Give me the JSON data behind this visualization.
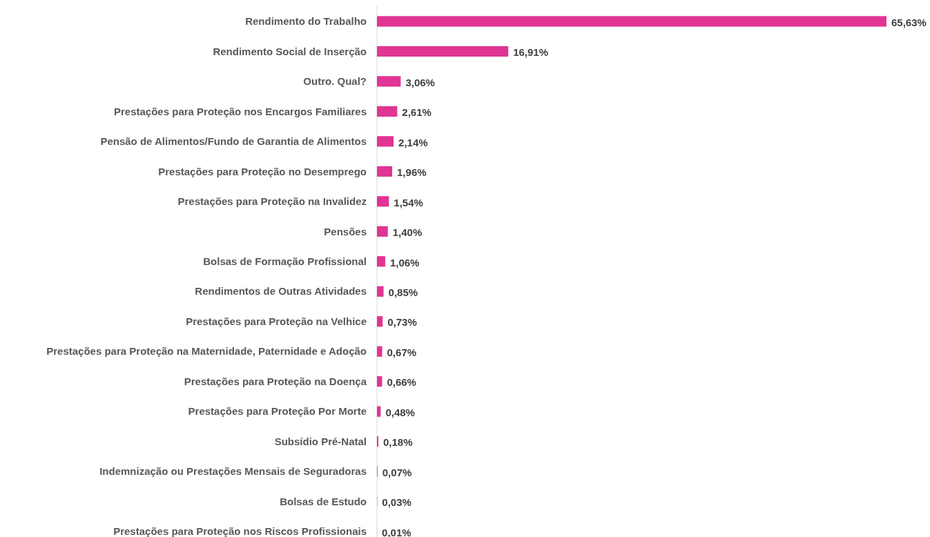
{
  "chart_data": {
    "type": "bar",
    "orientation": "horizontal",
    "color": "#e03594",
    "categories": [
      "Rendimento do Trabalho",
      "Rendimento Social de Inserção",
      "Outro. Qual?",
      "Prestações para Proteção nos Encargos Familiares",
      "Pensão de Alimentos/Fundo de Garantia de Alimentos",
      "Prestações para Proteção no Desemprego",
      "Prestações para Proteção na Invalidez",
      "Pensões",
      "Bolsas de Formação Profissional",
      "Rendimentos de Outras Atividades",
      "Prestações para Proteção na Velhice",
      "Prestações para Proteção na Maternidade, Paternidade e Adoção",
      "Prestações para Proteção na Doença",
      "Prestações para Proteção Por Morte",
      "Subsídio Pré-Natal",
      "Indemnização ou Prestações Mensais de Seguradoras",
      "Bolsas de Estudo",
      "Prestações para Proteção nos Riscos Profissionais"
    ],
    "values": [
      65.63,
      16.91,
      3.06,
      2.61,
      2.14,
      1.96,
      1.54,
      1.4,
      1.06,
      0.85,
      0.73,
      0.67,
      0.66,
      0.48,
      0.18,
      0.07,
      0.03,
      0.01
    ],
    "value_labels": [
      "65,63%",
      "16,91%",
      "3,06%",
      "2,61%",
      "2,14%",
      "1,96%",
      "1,54%",
      "1,40%",
      "1,06%",
      "0,85%",
      "0,73%",
      "0,67%",
      "0,66%",
      "0,48%",
      "0,18%",
      "0,07%",
      "0,03%",
      "0,01%"
    ]
  }
}
